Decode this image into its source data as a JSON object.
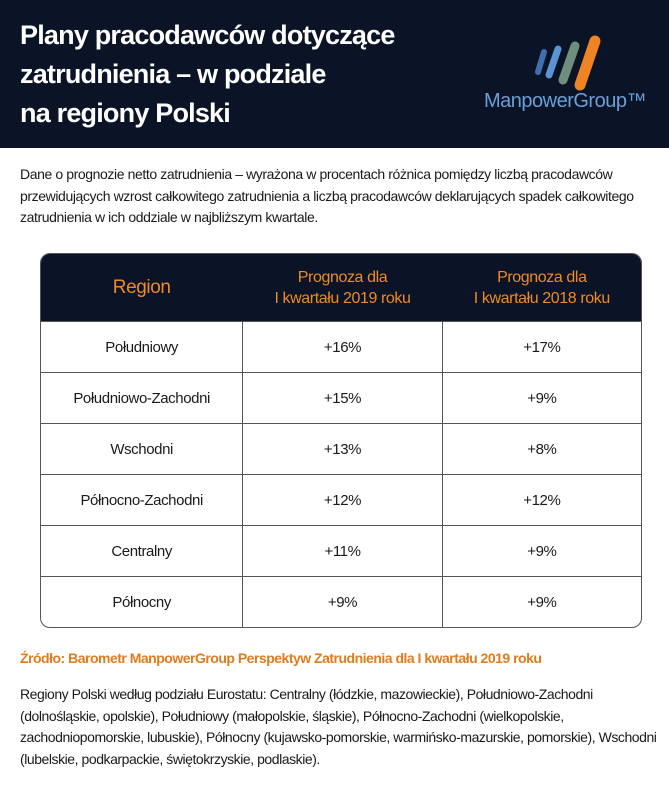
{
  "header": {
    "title": "Plany pracodawców dotyczące\nzatrudnienia – w podziale\nna regiony Polski",
    "logo_text": "ManpowerGroup™"
  },
  "intro": "Dane o prognozie netto zatrudnienia – wyrażona w procentach różnica pomiędzy liczbą pracodawców przewidujących wzrost całkowitego zatrudnienia a liczbą pracodawców deklarujących spadek całkowitego zatrudnienia w ich oddziale w najbliższym kwartale.",
  "table": {
    "headers": [
      "Region",
      "Prognoza dla\nI kwartału 2019 roku",
      "Prognoza dla\nI kwartału 2018 roku"
    ],
    "rows": [
      [
        "Południowy",
        "+16%",
        "+17%"
      ],
      [
        "Południowo-Zachodni",
        "+15%",
        "+9%"
      ],
      [
        "Wschodni",
        "+13%",
        "+8%"
      ],
      [
        "Północno-Zachodni",
        "+12%",
        "+12%"
      ],
      [
        "Centralny",
        "+11%",
        "+9%"
      ],
      [
        "Północny",
        "+9%",
        "+9%"
      ]
    ]
  },
  "source": "Źródło: Barometr ManpowerGroup Perspektyw Zatrudnienia dla I kwartału 2019 roku",
  "note": "Regiony Polski według podziału Eurostatu: Centralny (łódzkie, mazowieckie), Południowo-Zachodni (dolnośląskie, opolskie), Południowy (małopolskie, śląskie), Północno-Zachodni (wielkopolskie, zachodniopomorskie, lubuskie), Północny (kujawsko-pomorskie, warmińsko-mazurskie, pomorskie), Wschodni (lubelskie, podkarpackie, świętokrzyskie, podlaskie).",
  "colors": {
    "navy": "#0b1426",
    "orange": "#f08a24",
    "logo_blue": "#6a9fd8"
  }
}
